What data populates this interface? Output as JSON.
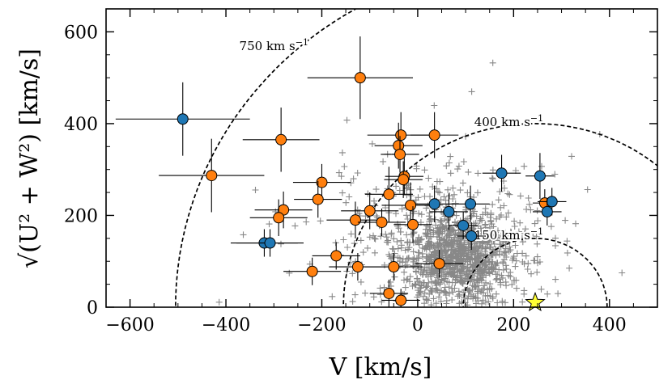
{
  "chart_data": {
    "type": "scatter",
    "title": "",
    "xlabel": "V [km/s]",
    "ylabel": "√(U² + W²) [km/s]",
    "xlim": [
      -650,
      500
    ],
    "ylim": [
      0,
      650
    ],
    "xticks": [
      -600,
      -400,
      -200,
      0,
      200,
      400
    ],
    "yticks": [
      0,
      200,
      400,
      600
    ],
    "xtick_labels": [
      "−600",
      "−400",
      "−200",
      "0",
      "200",
      "400"
    ],
    "ytick_labels": [
      "0",
      "200",
      "400",
      "600"
    ],
    "sun_V": 245,
    "colors": {
      "orange": "#ff7f0e",
      "blue": "#1f77b4",
      "star": "#ffff33",
      "background": "#888888"
    },
    "toomre_curves": [
      {
        "speed": 750,
        "label": "750 km s",
        "sup": "−1",
        "label_V": -300,
        "label_T": 560
      },
      {
        "speed": 400,
        "label": "400 km s",
        "sup": "−1",
        "label_V": 190,
        "label_T": 395
      },
      {
        "speed": 150,
        "label": "150 km s",
        "sup": "−1",
        "label_V": 190,
        "label_T": 148
      }
    ],
    "series": [
      {
        "name": "orange",
        "points": [
          {
            "x": -120,
            "y": 500,
            "xerr": 110,
            "yerr": 90
          },
          {
            "x": -430,
            "y": 287,
            "xerr": 110,
            "yerr": 80
          },
          {
            "x": -285,
            "y": 365,
            "xerr": 80,
            "yerr": 70
          },
          {
            "x": -35,
            "y": 375,
            "xerr": 70,
            "yerr": 50
          },
          {
            "x": 35,
            "y": 375,
            "xerr": 50,
            "yerr": 50
          },
          {
            "x": -40,
            "y": 352,
            "xerr": 50,
            "yerr": 50
          },
          {
            "x": -37,
            "y": 333,
            "xerr": 40,
            "yerr": 40
          },
          {
            "x": -28,
            "y": 285,
            "xerr": 40,
            "yerr": 40
          },
          {
            "x": -30,
            "y": 278,
            "xerr": 40,
            "yerr": 40
          },
          {
            "x": -200,
            "y": 272,
            "xerr": 60,
            "yerr": 40
          },
          {
            "x": -60,
            "y": 246,
            "xerr": 50,
            "yerr": 60
          },
          {
            "x": -208,
            "y": 235,
            "xerr": 50,
            "yerr": 40
          },
          {
            "x": -15,
            "y": 222,
            "xerr": 60,
            "yerr": 50
          },
          {
            "x": -280,
            "y": 212,
            "xerr": 60,
            "yerr": 40
          },
          {
            "x": -100,
            "y": 210,
            "xerr": 60,
            "yerr": 40
          },
          {
            "x": -290,
            "y": 195,
            "xerr": 60,
            "yerr": 40
          },
          {
            "x": -130,
            "y": 190,
            "xerr": 60,
            "yerr": 40
          },
          {
            "x": -75,
            "y": 185,
            "xerr": 50,
            "yerr": 30
          },
          {
            "x": -10,
            "y": 180,
            "xerr": 40,
            "yerr": 40
          },
          {
            "x": -170,
            "y": 112,
            "xerr": 50,
            "yerr": 30
          },
          {
            "x": -125,
            "y": 88,
            "xerr": 60,
            "yerr": 30
          },
          {
            "x": -50,
            "y": 88,
            "xerr": 60,
            "yerr": 30
          },
          {
            "x": 45,
            "y": 95,
            "xerr": 50,
            "yerr": 30
          },
          {
            "x": -220,
            "y": 78,
            "xerr": 60,
            "yerr": 30
          },
          {
            "x": -60,
            "y": 30,
            "xerr": 40,
            "yerr": 30
          },
          {
            "x": -35,
            "y": 15,
            "xerr": 40,
            "yerr": 25
          },
          {
            "x": 265,
            "y": 227,
            "xerr": 25,
            "yerr": 30
          }
        ]
      },
      {
        "name": "blue",
        "points": [
          {
            "x": -490,
            "y": 410,
            "xerr": 140,
            "yerr": 80
          },
          {
            "x": 175,
            "y": 292,
            "xerr": 40,
            "yerr": 40
          },
          {
            "x": 255,
            "y": 286,
            "xerr": 30,
            "yerr": 50
          },
          {
            "x": 280,
            "y": 230,
            "xerr": 30,
            "yerr": 30
          },
          {
            "x": 35,
            "y": 225,
            "xerr": 40,
            "yerr": 40
          },
          {
            "x": 110,
            "y": 225,
            "xerr": 40,
            "yerr": 40
          },
          {
            "x": 65,
            "y": 208,
            "xerr": 40,
            "yerr": 40
          },
          {
            "x": 270,
            "y": 208,
            "xerr": 30,
            "yerr": 30
          },
          {
            "x": 95,
            "y": 178,
            "xerr": 30,
            "yerr": 30
          },
          {
            "x": 112,
            "y": 155,
            "xerr": 30,
            "yerr": 30
          },
          {
            "x": -320,
            "y": 140,
            "xerr": 70,
            "yerr": 30
          },
          {
            "x": -308,
            "y": 140,
            "xerr": 70,
            "yerr": 30
          }
        ]
      },
      {
        "name": "background",
        "marker": "plus",
        "count": 1300,
        "summary": "dense grey cloud centred near V≈100, T≈100 km/s"
      }
    ]
  }
}
